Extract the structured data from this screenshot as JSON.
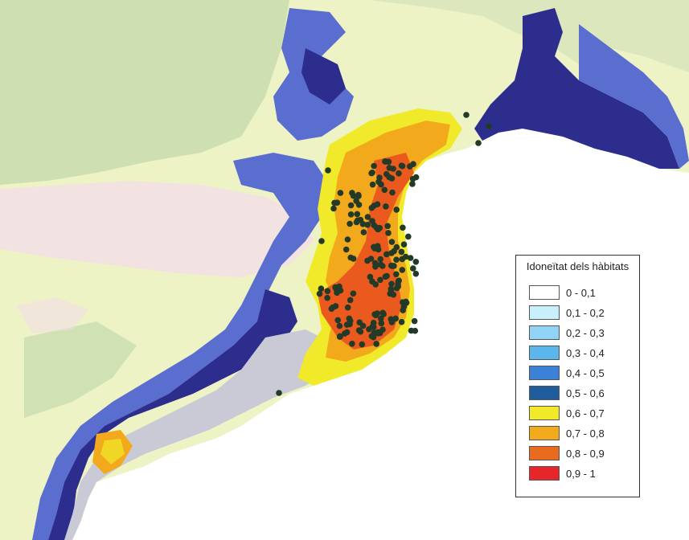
{
  "legend": {
    "title": "Idoneïtat dels hàbitats",
    "items": [
      {
        "label": "0 - 0,1",
        "color": "#ffffff"
      },
      {
        "label": "0,1 - 0,2",
        "color": "#c9eefc"
      },
      {
        "label": "0,2 - 0,3",
        "color": "#92d3f5"
      },
      {
        "label": "0,3 - 0,4",
        "color": "#5bb6ec"
      },
      {
        "label": "0,4 - 0,5",
        "color": "#3b82d6"
      },
      {
        "label": "0,5 - 0,6",
        "color": "#1f5d9c"
      },
      {
        "label": "0,6 - 0,7",
        "color": "#f0ea2a"
      },
      {
        "label": "0,7 - 0,8",
        "color": "#f2a91c"
      },
      {
        "label": "0,8 - 0,9",
        "color": "#ea6a1e"
      },
      {
        "label": "0,9 - 1",
        "color": "#e8262a"
      }
    ]
  },
  "map": {
    "colors": {
      "terrain_low": "#eef3c6",
      "terrain_green": "#c8dcae",
      "terrain_pink": "#f3dde8",
      "sea": "#ffffff",
      "habitat_dark_blue": "#2c2d8c",
      "habitat_blue": "#5a6ed0",
      "habitat_grey": "#c9cad6",
      "habitat_yellow": "#f0ea2a",
      "habitat_orange": "#f2a91c",
      "habitat_red_orange": "#ea5a1e",
      "occurrence_points": "#233a28"
    },
    "occurrence_point_icon": "filled-circle"
  }
}
